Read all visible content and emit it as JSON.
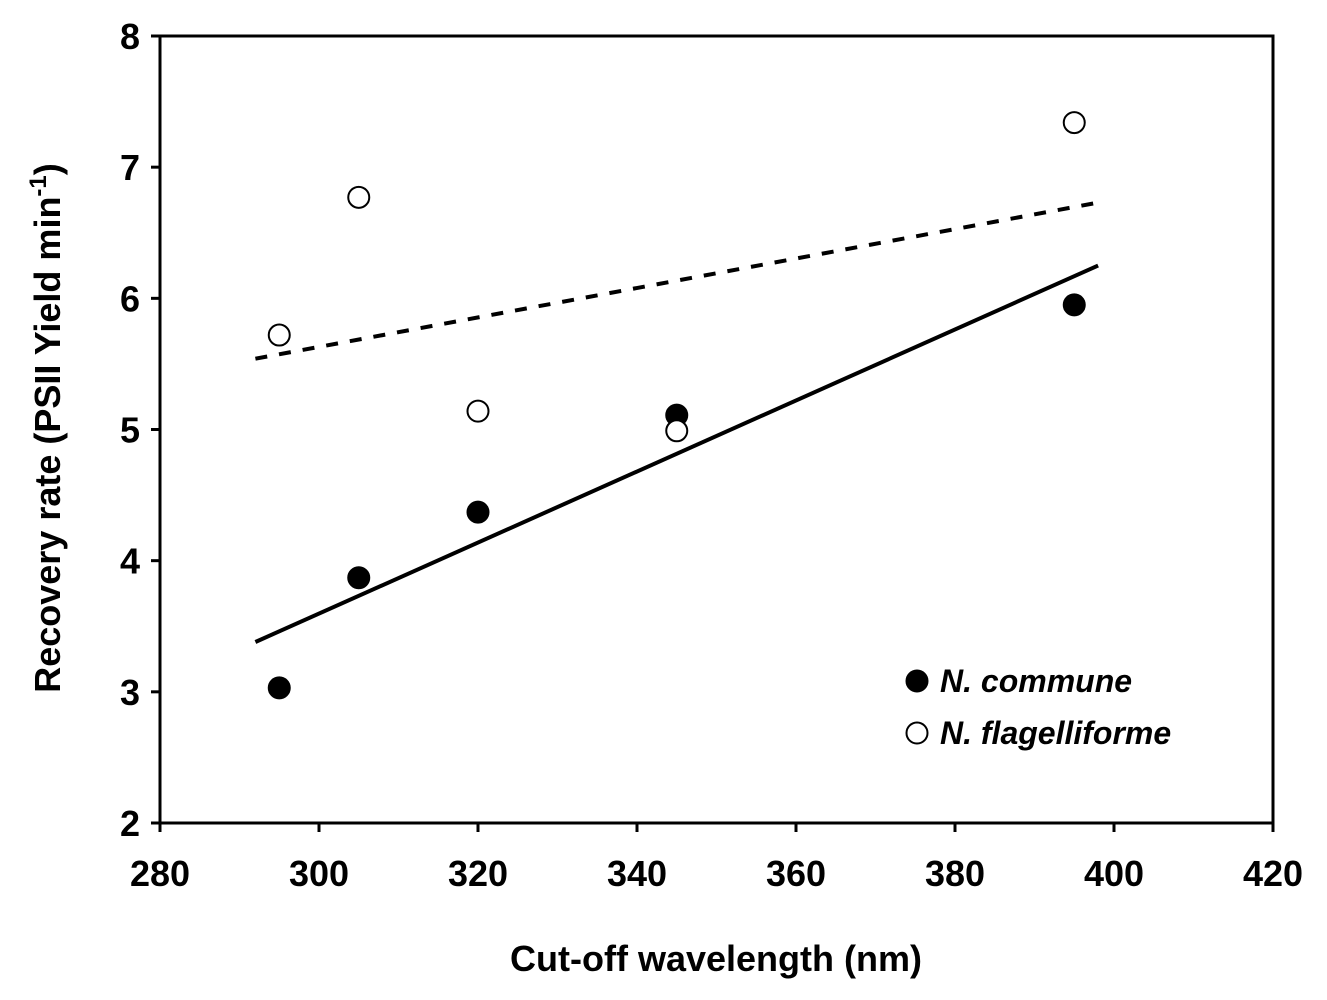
{
  "chart_data": {
    "type": "scatter",
    "title": "",
    "xlabel": "Cut-off wavelength (nm)",
    "ylabel": "Recovery rate (PSII Yield min",
    "ylabel_superscript": "-1",
    "ylabel_suffix": ")",
    "xlim": [
      280,
      420
    ],
    "ylim": [
      2,
      8
    ],
    "xticks": [
      280,
      300,
      320,
      340,
      360,
      380,
      400,
      420
    ],
    "yticks": [
      2,
      3,
      4,
      5,
      6,
      7,
      8
    ],
    "grid": false,
    "legend_position": "bottom-right",
    "series": [
      {
        "name": "N. commune",
        "marker": "filled-circle",
        "x": [
          295,
          305,
          320,
          345,
          395
        ],
        "y": [
          3.03,
          3.87,
          4.37,
          5.11,
          5.95
        ],
        "trendline": {
          "style": "solid",
          "x": [
            292,
            398
          ],
          "y": [
            3.38,
            6.25
          ]
        }
      },
      {
        "name": "N. flagelliforme",
        "marker": "open-circle",
        "x": [
          295,
          305,
          320,
          345,
          395
        ],
        "y": [
          5.72,
          6.77,
          5.14,
          4.99,
          7.34
        ],
        "trendline": {
          "style": "dashed",
          "x": [
            292,
            398
          ],
          "y": [
            5.54,
            6.73
          ]
        }
      }
    ],
    "colors": {
      "ink": "#000000",
      "background": "#ffffff"
    }
  }
}
